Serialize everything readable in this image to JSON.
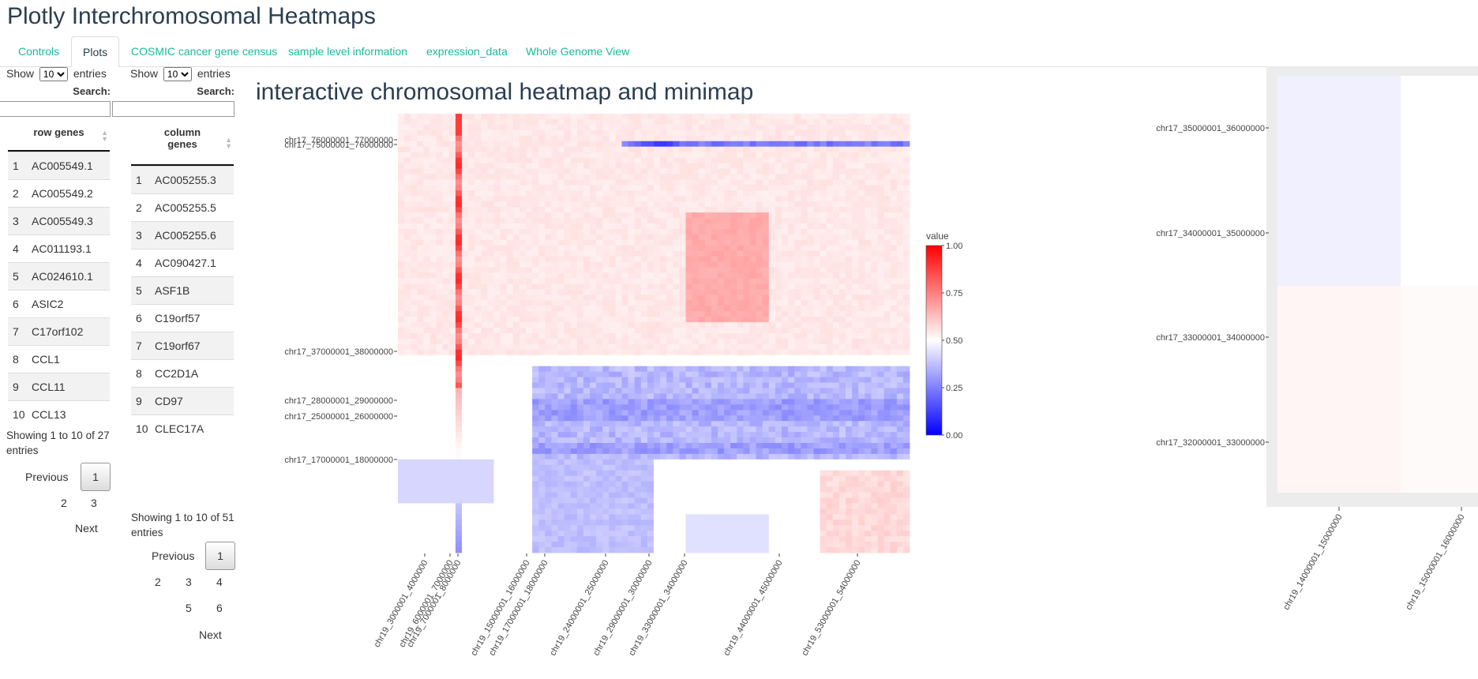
{
  "app": {
    "title": "Plotly Interchromosomal Heatmaps"
  },
  "tabs": [
    "Controls",
    "Plots",
    "COSMIC cancer gene census",
    "sample level information",
    "expression_data",
    "Whole Genome View"
  ],
  "active_tab": "Plots",
  "row_table": {
    "show_label": "Show",
    "entries_label": "entries",
    "length_value": "10",
    "search_label": "Search:",
    "search_value": "",
    "header": "row genes",
    "rows": [
      [
        "1",
        "AC005549.1"
      ],
      [
        "2",
        "AC005549.2"
      ],
      [
        "3",
        "AC005549.3"
      ],
      [
        "4",
        "AC011193.1"
      ],
      [
        "5",
        "AC024610.1"
      ],
      [
        "6",
        "ASIC2"
      ],
      [
        "7",
        "C17orf102"
      ],
      [
        "8",
        "CCL1"
      ],
      [
        "9",
        "CCL11"
      ],
      [
        "10",
        "CCL13"
      ]
    ],
    "info_line1": "Showing 1 to 10 of 27",
    "info_line2": "entries",
    "previous": "Previous",
    "next": "Next",
    "pages": [
      "1",
      "2",
      "3"
    ]
  },
  "col_table": {
    "show_label": "Show",
    "entries_label": "entries",
    "length_value": "10",
    "search_label": "Search:",
    "search_value": "",
    "header_line1": "column",
    "header_line2": "genes",
    "rows": [
      [
        "1",
        "AC005255.3"
      ],
      [
        "2",
        "AC005255.5"
      ],
      [
        "3",
        "AC005255.6"
      ],
      [
        "4",
        "AC090427.1"
      ],
      [
        "5",
        "ASF1B"
      ],
      [
        "6",
        "C19orf57"
      ],
      [
        "7",
        "C19orf67"
      ],
      [
        "8",
        "CC2D1A"
      ],
      [
        "9",
        "CD97"
      ],
      [
        "10",
        "CLEC17A"
      ]
    ],
    "info_line1": "Showing 1 to 10 of 51",
    "info_line2": "entries",
    "previous": "Previous",
    "next": "Next",
    "pages": [
      "1",
      "2",
      "3",
      "4",
      "5",
      "6"
    ]
  },
  "plot": {
    "title": "interactive chromosomal heatmap and minimap",
    "colorbar": {
      "title": "value",
      "ticks": [
        "1.00",
        "0.75",
        "0.50",
        "0.25",
        "0.00"
      ],
      "low_color": "#0000ff",
      "mid_color": "#ffffff",
      "high_color": "#ff0000"
    }
  },
  "chart_data": [
    {
      "type": "heatmap",
      "name": "interactive chromosomal heatmap",
      "zlim": [
        0,
        1
      ],
      "y_tick_labels": [
        "chr17_76000001_77000000",
        "chr17_75000001_76000000",
        "chr17_37000001_38000000",
        "chr17_28000001_29000000",
        "chr17_25000001_26000000",
        "chr17_17000001_18000000"
      ],
      "x_tick_labels": [
        "chr19_3000001_4000000",
        "chr19_6000001_7000000",
        "chr19_7000001_8000000",
        "chr19_15000001_16000000",
        "chr19_17000001_18000000",
        "chr19_24000001_25000000",
        "chr19_29000001_30000000",
        "chr19_33000001_34000000",
        "chr19_44000001_45000000",
        "chr19_53000001_54000000"
      ],
      "regions": [
        {
          "desc": "strong red vertical band",
          "x": "chr19_7000001_8000000",
          "value": 0.93
        },
        {
          "desc": "blue horizontal band",
          "y": "chr17_76000001_77000000",
          "value": 0.2
        },
        {
          "desc": "blue block lower rows",
          "y": "chr17_28000001_29000000",
          "value": 0.3
        },
        {
          "desc": "pale red block",
          "x": "chr19_33000001_34000000",
          "value": 0.64
        }
      ]
    },
    {
      "type": "heatmap",
      "name": "minimap",
      "y_tick_labels": [
        "chr17_35000001_36000000",
        "chr17_34000001_35000000",
        "chr17_33000001_34000000",
        "chr17_32000001_33000000"
      ],
      "x_tick_labels": [
        "chr19_14000001_15000000",
        "chr19_15000001_16000000"
      ],
      "cells": [
        {
          "x": "chr19_14000001_15000000",
          "y": "chr17_35000001_36000000",
          "value": 0.47
        },
        {
          "x": "chr19_14000001_15000000",
          "y": "chr17_34000001_35000000",
          "value": 0.47
        },
        {
          "x": "chr19_14000001_15000000",
          "y": "chr17_33000001_34000000",
          "value": 0.52
        },
        {
          "x": "chr19_14000001_15000000",
          "y": "chr17_32000001_33000000",
          "value": 0.52
        },
        {
          "x": "chr19_15000001_16000000",
          "y": "chr17_35000001_36000000",
          "value": 0.5
        },
        {
          "x": "chr19_15000001_16000000",
          "y": "chr17_34000001_35000000",
          "value": 0.5
        },
        {
          "x": "chr19_15000001_16000000",
          "y": "chr17_33000001_34000000",
          "value": 0.51
        },
        {
          "x": "chr19_15000001_16000000",
          "y": "chr17_32000001_33000000",
          "value": 0.51
        }
      ]
    }
  ]
}
